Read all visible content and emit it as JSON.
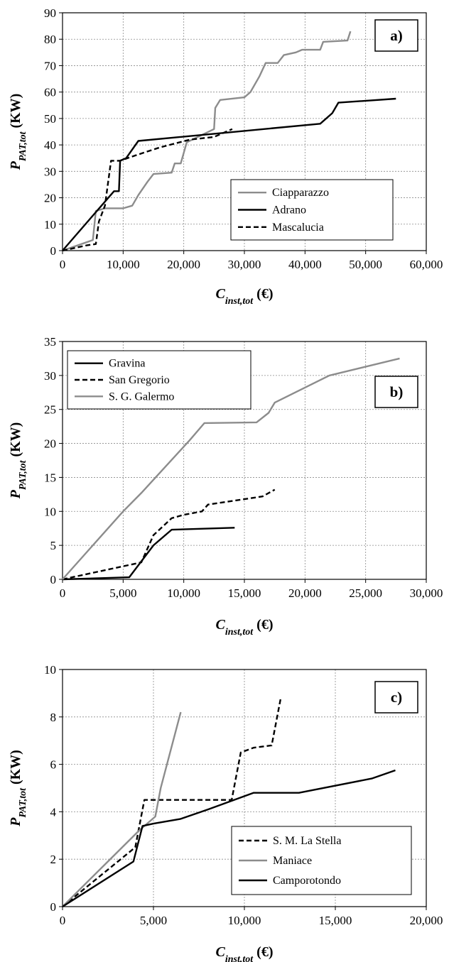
{
  "chart_data": [
    {
      "type": "line",
      "panel_label": "a)",
      "xlabel_main": "C",
      "xlabel_sub": "inst,tot",
      "xlabel_unit": " (€)",
      "ylabel_main": "P",
      "ylabel_sub": "PAT,tot",
      "ylabel_unit": " (KW)",
      "xlim": [
        0,
        60000
      ],
      "ylim": [
        0,
        90
      ],
      "xticks": [
        0,
        10000,
        20000,
        30000,
        40000,
        50000,
        60000
      ],
      "xtick_labels": [
        "0",
        "10,000",
        "20,000",
        "30,000",
        "40,000",
        "50,000",
        "60,000"
      ],
      "yticks": [
        0,
        10,
        20,
        30,
        40,
        50,
        60,
        70,
        80,
        90
      ],
      "ytick_labels": [
        "0",
        "10",
        "20",
        "30",
        "40",
        "50",
        "60",
        "70",
        "80",
        "90"
      ],
      "grid": true,
      "legend_position": "bottom-right",
      "series": [
        {
          "name": "Ciapparazzo",
          "color": "#8c8c8c",
          "dash": "solid",
          "points": [
            [
              0,
              0
            ],
            [
              5000,
              4
            ],
            [
              5500,
              15
            ],
            [
              7000,
              16
            ],
            [
              10000,
              16
            ],
            [
              11500,
              17
            ],
            [
              12500,
              21
            ],
            [
              14000,
              26
            ],
            [
              15000,
              29
            ],
            [
              18000,
              29.5
            ],
            [
              18500,
              33
            ],
            [
              19500,
              33
            ],
            [
              20500,
              41
            ],
            [
              25000,
              46
            ],
            [
              25200,
              54
            ],
            [
              26000,
              57
            ],
            [
              30000,
              58
            ],
            [
              31000,
              60
            ],
            [
              32500,
              66
            ],
            [
              33500,
              71
            ],
            [
              35500,
              71
            ],
            [
              36500,
              74
            ],
            [
              38500,
              75
            ],
            [
              39500,
              76
            ],
            [
              42500,
              76
            ],
            [
              43000,
              79
            ],
            [
              47000,
              79.5
            ],
            [
              47500,
              83
            ]
          ]
        },
        {
          "name": "Adrano",
          "color": "#000000",
          "dash": "solid",
          "points": [
            [
              0,
              0
            ],
            [
              8500,
              22.5
            ],
            [
              9300,
              22.5
            ],
            [
              9500,
              34
            ],
            [
              10500,
              35
            ],
            [
              12500,
              41.5
            ],
            [
              42500,
              48
            ],
            [
              44500,
              52
            ],
            [
              45500,
              56
            ],
            [
              55000,
              57.5
            ]
          ]
        },
        {
          "name": "Mascalucia",
          "color": "#000000",
          "dash": "dashed",
          "points": [
            [
              0,
              0
            ],
            [
              4000,
              2
            ],
            [
              5500,
              2.5
            ],
            [
              6000,
              11
            ],
            [
              7000,
              17
            ],
            [
              8000,
              34
            ],
            [
              9500,
              34
            ],
            [
              12000,
              36
            ],
            [
              16000,
              39
            ],
            [
              21000,
              42
            ],
            [
              25000,
              43
            ],
            [
              28000,
              46
            ]
          ]
        }
      ]
    },
    {
      "type": "line",
      "panel_label": "b)",
      "xlabel_main": "C",
      "xlabel_sub": "inst,tot",
      "xlabel_unit": " (€)",
      "ylabel_main": "P",
      "ylabel_sub": "PAT,tot",
      "ylabel_unit": " (KW)",
      "xlim": [
        0,
        30000
      ],
      "ylim": [
        0,
        35
      ],
      "xticks": [
        0,
        5000,
        10000,
        15000,
        20000,
        25000,
        30000
      ],
      "xtick_labels": [
        "0",
        "5,000",
        "10,000",
        "15,000",
        "20,000",
        "25,000",
        "30,000"
      ],
      "yticks": [
        0,
        5,
        10,
        15,
        20,
        25,
        30,
        35
      ],
      "ytick_labels": [
        "0",
        "5",
        "10",
        "15",
        "20",
        "25",
        "30",
        "35"
      ],
      "grid": true,
      "legend_position": "top-left",
      "series": [
        {
          "name": "Gravina",
          "color": "#000000",
          "dash": "solid",
          "points": [
            [
              0,
              0
            ],
            [
              5500,
              0.3
            ],
            [
              7500,
              5
            ],
            [
              9000,
              7.3
            ],
            [
              14200,
              7.6
            ]
          ]
        },
        {
          "name": "San Gregorio",
          "color": "#000000",
          "dash": "dashed",
          "points": [
            [
              0,
              0
            ],
            [
              6500,
              2.5
            ],
            [
              7500,
              6.5
            ],
            [
              9000,
              9
            ],
            [
              10000,
              9.5
            ],
            [
              11500,
              10
            ],
            [
              12000,
              11
            ],
            [
              16500,
              12.2
            ],
            [
              17500,
              13.2
            ]
          ]
        },
        {
          "name": "S. G. Galermo",
          "color": "#8c8c8c",
          "dash": "solid",
          "points": [
            [
              0,
              0
            ],
            [
              5000,
              10
            ],
            [
              6500,
              12.7
            ],
            [
              10500,
              20.5
            ],
            [
              11700,
              23
            ],
            [
              16000,
              23.1
            ],
            [
              17000,
              24.5
            ],
            [
              17500,
              26
            ],
            [
              22000,
              30
            ],
            [
              27800,
              32.5
            ]
          ]
        }
      ]
    },
    {
      "type": "line",
      "panel_label": "c)",
      "xlabel_main": "C",
      "xlabel_sub": "inst,tot",
      "xlabel_unit": " (€)",
      "ylabel_main": "P",
      "ylabel_sub": "PAT,tot",
      "ylabel_unit": " (KW)",
      "xlim": [
        0,
        20000
      ],
      "ylim": [
        0,
        10
      ],
      "xticks": [
        0,
        5000,
        10000,
        15000,
        20000
      ],
      "xtick_labels": [
        "0",
        "5,000",
        "10,000",
        "15,000",
        "20,000"
      ],
      "yticks": [
        0,
        2,
        4,
        6,
        8,
        10
      ],
      "ytick_labels": [
        "0",
        "2",
        "4",
        "6",
        "8",
        "10"
      ],
      "grid": true,
      "legend_position": "bottom-right",
      "series": [
        {
          "name": "S. M. La Stella",
          "color": "#000000",
          "dash": "dashed",
          "points": [
            [
              0,
              0
            ],
            [
              4000,
              2.5
            ],
            [
              4500,
              4.5
            ],
            [
              9300,
              4.5
            ],
            [
              9800,
              6.5
            ],
            [
              10500,
              6.7
            ],
            [
              11500,
              6.8
            ],
            [
              12000,
              8.8
            ]
          ]
        },
        {
          "name": "Maniace",
          "color": "#8c8c8c",
          "dash": "solid",
          "points": [
            [
              0,
              0
            ],
            [
              4200,
              3.2
            ],
            [
              5100,
              3.8
            ],
            [
              5400,
              5
            ],
            [
              6500,
              8.2
            ]
          ]
        },
        {
          "name": "Camporotondo",
          "color": "#000000",
          "dash": "solid",
          "points": [
            [
              0,
              0
            ],
            [
              3900,
              1.9
            ],
            [
              4400,
              3.4
            ],
            [
              5000,
              3.5
            ],
            [
              6500,
              3.7
            ],
            [
              8000,
              4.1
            ],
            [
              10500,
              4.8
            ],
            [
              13000,
              4.8
            ],
            [
              17000,
              5.4
            ],
            [
              18300,
              5.75
            ]
          ]
        }
      ]
    }
  ]
}
